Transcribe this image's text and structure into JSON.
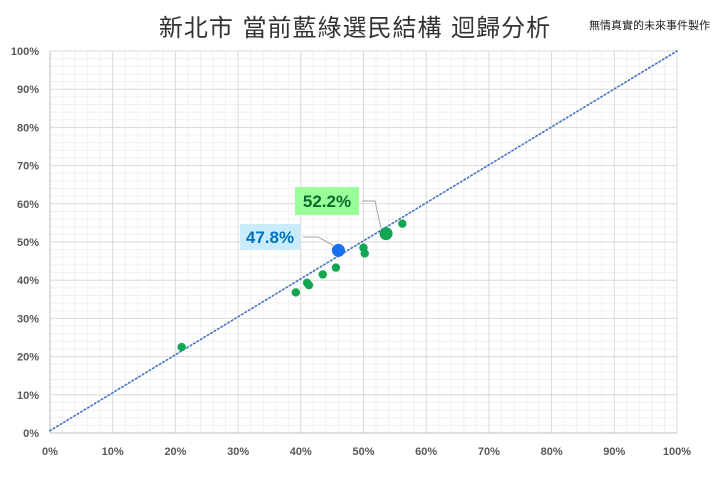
{
  "chart_data": {
    "type": "scatter",
    "title": "新北市  當前藍綠選民結構 迴歸分析",
    "credit": "無情真實的未來事件製作",
    "xlim": [
      0,
      100
    ],
    "ylim": [
      0,
      100
    ],
    "x_ticks": [
      "0%",
      "10%",
      "20%",
      "30%",
      "40%",
      "50%",
      "60%",
      "70%",
      "80%",
      "90%",
      "100%"
    ],
    "y_ticks": [
      "0%",
      "10%",
      "20%",
      "30%",
      "40%",
      "50%",
      "60%",
      "70%",
      "80%",
      "90%",
      "100%"
    ],
    "grid": true,
    "points": [
      {
        "x": 21.0,
        "y": 22.5
      },
      {
        "x": 39.2,
        "y": 36.8
      },
      {
        "x": 41.0,
        "y": 39.3
      },
      {
        "x": 41.3,
        "y": 38.7
      },
      {
        "x": 43.5,
        "y": 41.5
      },
      {
        "x": 45.6,
        "y": 43.3
      },
      {
        "x": 50.0,
        "y": 48.5
      },
      {
        "x": 50.2,
        "y": 47.0
      },
      {
        "x": 56.2,
        "y": 54.8
      }
    ],
    "highlights": [
      {
        "x": 46.0,
        "y": 47.8,
        "label": "47.8%",
        "color": "#1a6ff0",
        "label_color": "#0070c0",
        "box_color": "#c9ecfa"
      },
      {
        "x": 53.6,
        "y": 52.2,
        "label": "52.2%",
        "color": "#12a552",
        "label_color": "#0a6b2c",
        "box_color": "#99ff99"
      }
    ],
    "trendline": {
      "from": [
        0,
        0.6
      ],
      "to": [
        100,
        100
      ],
      "color": "#4472c4"
    },
    "colors": {
      "point": "#12a552",
      "grid_major": "#d9d9d9",
      "grid_minor": "#f0f0f0",
      "axis": "#bfbfbf"
    }
  }
}
